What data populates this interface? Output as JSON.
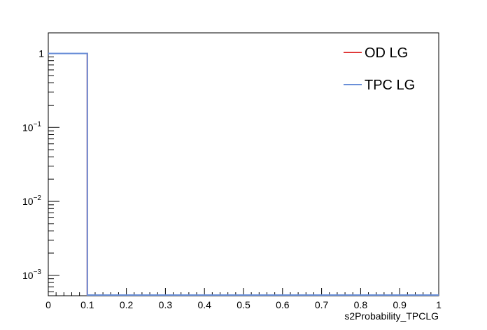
{
  "chart_data": {
    "type": "line",
    "title": "",
    "xlabel": "s2Probability_TPCLG",
    "ylabel": "",
    "xlim": [
      0,
      1
    ],
    "ylim": [
      0.00053,
      1.9
    ],
    "yscale": "log",
    "grid": false,
    "legend_position": "top-right",
    "x_tick_labels": [
      "0",
      "0.1",
      "0.2",
      "0.3",
      "0.4",
      "0.5",
      "0.6",
      "0.7",
      "0.8",
      "0.9",
      "1"
    ],
    "y_tick_labels": [
      {
        "base": "1",
        "exp": ""
      },
      {
        "base": "10",
        "exp": "−1"
      },
      {
        "base": "10",
        "exp": "−2"
      },
      {
        "base": "10",
        "exp": "−3"
      }
    ],
    "bin_edges": [
      0,
      0.1,
      0.2,
      0.3,
      0.4,
      0.5,
      0.6,
      0.7,
      0.8,
      0.9,
      1.0
    ],
    "series": [
      {
        "name": "OD LG",
        "color": "#e03a3a",
        "values": [
          1,
          0,
          0,
          0,
          0,
          0,
          0,
          0,
          0,
          0
        ]
      },
      {
        "name": "TPC LG",
        "color": "#6a8fd8",
        "values": [
          1,
          0,
          0,
          0,
          0,
          0,
          0,
          0,
          0,
          0
        ]
      }
    ]
  }
}
